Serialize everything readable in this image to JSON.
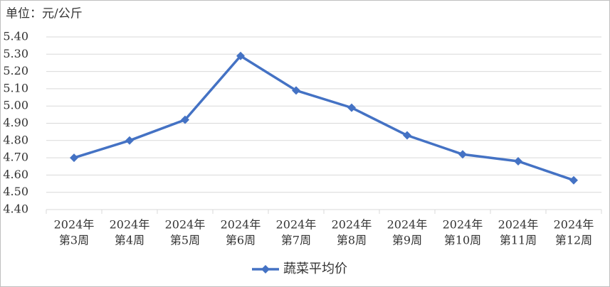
{
  "chart_data": {
    "type": "line",
    "unit_label": "单位：元/公斤",
    "categories": [
      [
        "2024年",
        "第3周"
      ],
      [
        "2024年",
        "第4周"
      ],
      [
        "2024年",
        "第5周"
      ],
      [
        "2024年",
        "第6周"
      ],
      [
        "2024年",
        "第7周"
      ],
      [
        "2024年",
        "第8周"
      ],
      [
        "2024年",
        "第9周"
      ],
      [
        "2024年",
        "第10周"
      ],
      [
        "2024年",
        "第11周"
      ],
      [
        "2024年",
        "第12周"
      ]
    ],
    "series": [
      {
        "name": "蔬菜平均价",
        "color": "#4472c4",
        "values": [
          4.7,
          4.8,
          4.92,
          5.29,
          5.09,
          4.99,
          4.83,
          4.72,
          4.68,
          4.57
        ]
      }
    ],
    "ylim": [
      4.4,
      5.4
    ],
    "yticks": [
      {
        "value": 4.4,
        "label": "4.40"
      },
      {
        "value": 4.5,
        "label": "4.50"
      },
      {
        "value": 4.6,
        "label": "4.60"
      },
      {
        "value": 4.7,
        "label": "4.70"
      },
      {
        "value": 4.8,
        "label": "4.80"
      },
      {
        "value": 4.9,
        "label": "4.90"
      },
      {
        "value": 5.0,
        "label": "5.00"
      },
      {
        "value": 5.1,
        "label": "5.10"
      },
      {
        "value": 5.2,
        "label": "5.20"
      },
      {
        "value": 5.3,
        "label": "5.30"
      },
      {
        "value": 5.4,
        "label": "5.40"
      }
    ],
    "grid": true,
    "legend": "bottom"
  }
}
